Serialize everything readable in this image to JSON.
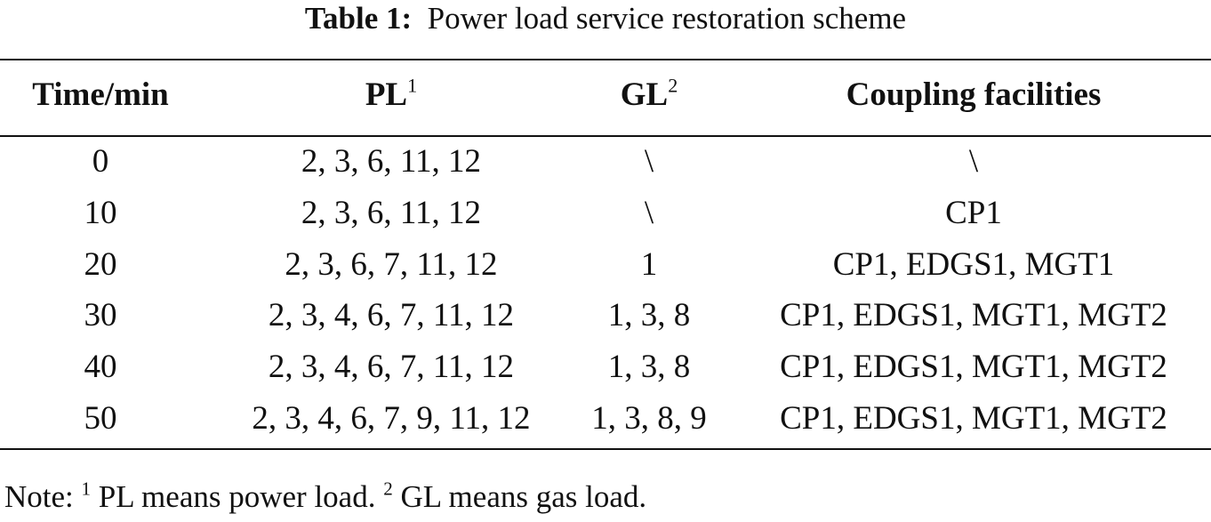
{
  "table": {
    "label": "Table 1:",
    "caption": "Power load service restoration scheme",
    "header": [
      {
        "text": "Time/min"
      },
      {
        "text": "PL",
        "sup": "1"
      },
      {
        "text": "GL",
        "sup": "2"
      },
      {
        "text": "Coupling facilities"
      }
    ],
    "rows": [
      [
        "0",
        "2, 3, 6, 11, 12",
        "\\",
        "\\"
      ],
      [
        "10",
        "2, 3, 6, 11, 12",
        "\\",
        "CP1"
      ],
      [
        "20",
        "2, 3, 6, 7, 11, 12",
        "1",
        "CP1, EDGS1, MGT1"
      ],
      [
        "30",
        "2, 3, 4, 6, 7, 11, 12",
        "1, 3, 8",
        "CP1, EDGS1, MGT1, MGT2"
      ],
      [
        "40",
        "2, 3, 4, 6, 7, 11, 12",
        "1, 3, 8",
        "CP1, EDGS1, MGT1, MGT2"
      ],
      [
        "50",
        "2, 3, 4, 6, 7, 9, 11, 12",
        "1, 3, 8, 9",
        "CP1, EDGS1, MGT1, MGT2"
      ]
    ]
  },
  "note": {
    "lead": "Note:",
    "items": [
      {
        "sup": "1",
        "text": "PL means power load."
      },
      {
        "sup": "2",
        "text": "GL means gas load."
      }
    ]
  }
}
